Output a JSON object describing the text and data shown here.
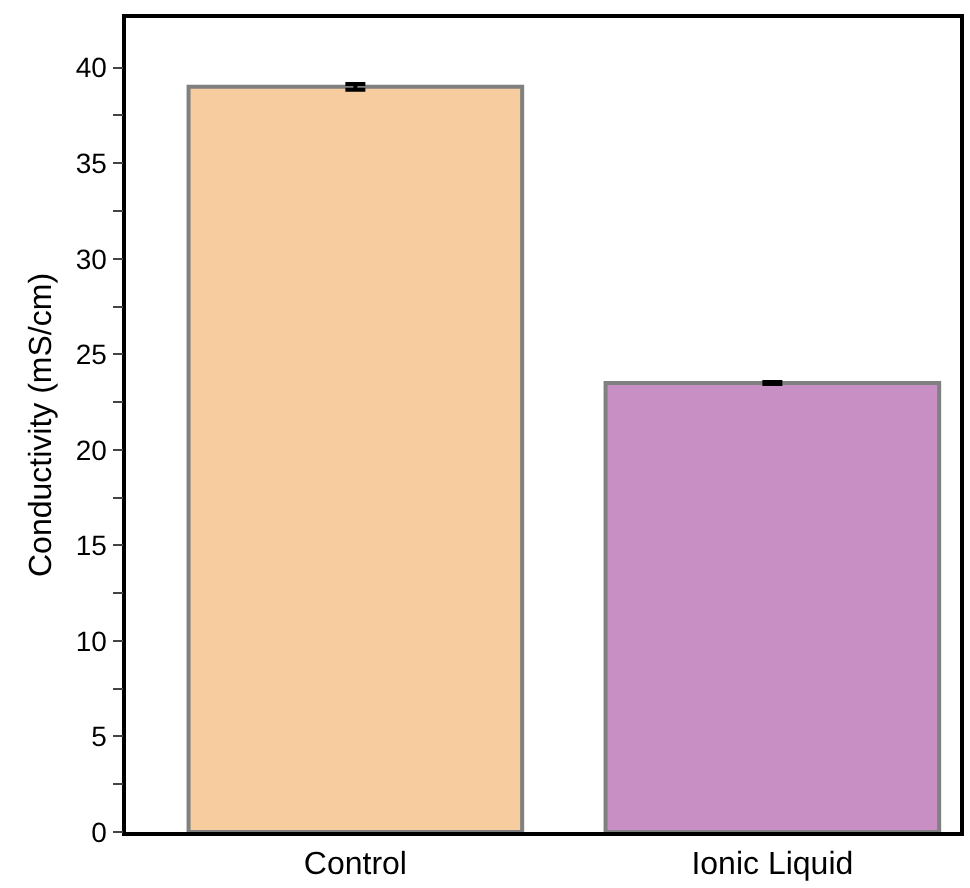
{
  "chart_data": {
    "type": "bar",
    "ylabel": "Conductivity (mS/cm)",
    "categories": [
      "Control",
      "Ionic Liquid"
    ],
    "values": [
      39.0,
      23.5
    ],
    "colors": [
      "#f7cc9e",
      "#c78fc4"
    ],
    "errors": [
      0.15,
      0.05
    ],
    "ylim": [
      0,
      42.6
    ],
    "yticks": [
      0,
      {
        "value": 2.5,
        "label": null
      },
      5,
      {
        "value": 7.5,
        "label": null
      },
      10,
      {
        "value": 12.5,
        "label": null
      },
      15,
      {
        "value": 17.5,
        "label": null
      },
      20,
      {
        "value": 22.5,
        "label": null
      },
      25,
      {
        "value": 27.5,
        "label": null
      },
      30,
      {
        "value": 32.5,
        "label": null
      },
      35,
      {
        "value": 37.5,
        "label": null
      },
      40
    ]
  }
}
